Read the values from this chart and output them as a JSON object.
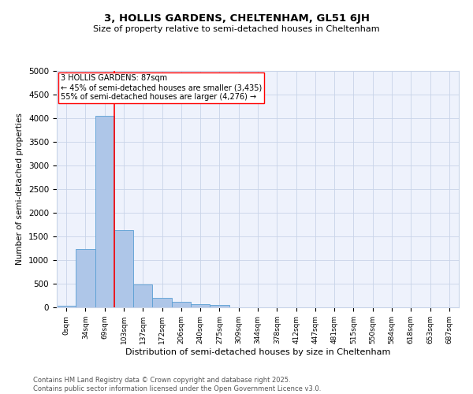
{
  "title1": "3, HOLLIS GARDENS, CHELTENHAM, GL51 6JH",
  "title2": "Size of property relative to semi-detached houses in Cheltenham",
  "xlabel": "Distribution of semi-detached houses by size in Cheltenham",
  "ylabel": "Number of semi-detached properties",
  "categories": [
    "0sqm",
    "34sqm",
    "69sqm",
    "103sqm",
    "137sqm",
    "172sqm",
    "206sqm",
    "240sqm",
    "275sqm",
    "309sqm",
    "344sqm",
    "378sqm",
    "412sqm",
    "447sqm",
    "481sqm",
    "515sqm",
    "550sqm",
    "584sqm",
    "618sqm",
    "653sqm",
    "687sqm"
  ],
  "values": [
    40,
    1230,
    4050,
    1640,
    490,
    195,
    110,
    70,
    50,
    0,
    0,
    0,
    0,
    0,
    0,
    0,
    0,
    0,
    0,
    0,
    0
  ],
  "bar_color": "#aec6e8",
  "bar_edge_color": "#5a9fd4",
  "redline_index": 2,
  "annotation_label": "3 HOLLIS GARDENS: 87sqm",
  "annotation_line1": "← 45% of semi-detached houses are smaller (3,435)",
  "annotation_line2": "55% of semi-detached houses are larger (4,276) →",
  "ylim": [
    0,
    5000
  ],
  "yticks": [
    0,
    500,
    1000,
    1500,
    2000,
    2500,
    3000,
    3500,
    4000,
    4500,
    5000
  ],
  "footer1": "Contains HM Land Registry data © Crown copyright and database right 2025.",
  "footer2": "Contains public sector information licensed under the Open Government Licence v3.0.",
  "bg_color": "#eef2fc",
  "grid_color": "#c8d4e8"
}
